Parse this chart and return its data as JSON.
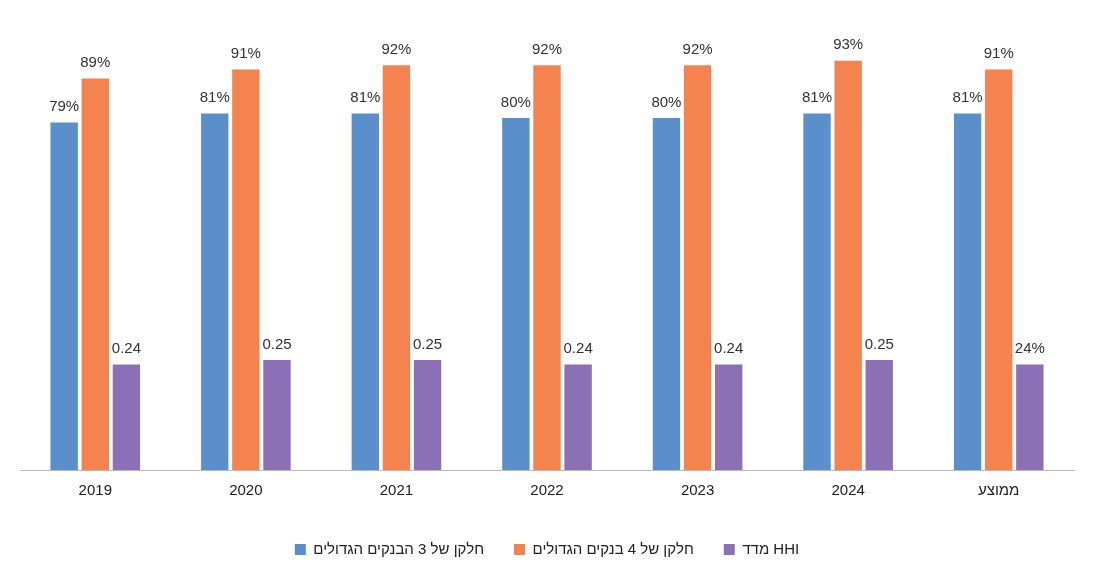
{
  "chart_data": {
    "type": "bar",
    "categories": [
      "2019",
      "2020",
      "2021",
      "2022",
      "2023",
      "2024",
      "ממוצע"
    ],
    "series": [
      {
        "name": "חלקן של 3 הבנקים הגדולים",
        "color": "#5b8fcc",
        "values": [
          79,
          81,
          81,
          80,
          80,
          81,
          81
        ],
        "value_labels": [
          "79%",
          "81%",
          "81%",
          "80%",
          "80%",
          "81%",
          "81%"
        ]
      },
      {
        "name": "חלקן של 4 בנקים הגדולים",
        "color": "#f58350",
        "values": [
          89,
          91,
          92,
          92,
          92,
          93,
          91
        ],
        "value_labels": [
          "89%",
          "91%",
          "92%",
          "92%",
          "92%",
          "93%",
          "91%"
        ]
      },
      {
        "name": "מדד HHI",
        "color": "#8c70b5",
        "axis": "y2",
        "values": [
          0.24,
          0.25,
          0.25,
          0.24,
          0.24,
          0.25,
          0.24
        ],
        "value_labels": [
          "0.24",
          "0.25",
          "0.25",
          "0.24",
          "0.24",
          "0.25",
          "24%"
        ]
      }
    ],
    "legend": "bottom",
    "grid": false
  }
}
